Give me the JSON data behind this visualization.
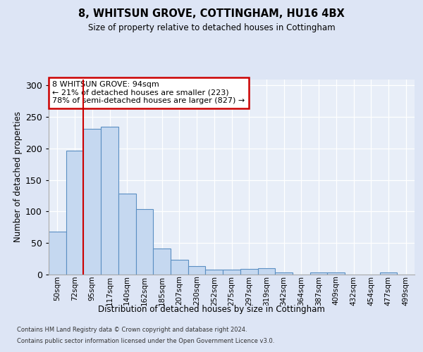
{
  "title": "8, WHITSUN GROVE, COTTINGHAM, HU16 4BX",
  "subtitle": "Size of property relative to detached houses in Cottingham",
  "xlabel": "Distribution of detached houses by size in Cottingham",
  "ylabel": "Number of detached properties",
  "bar_color": "#c5d8f0",
  "bar_edge_color": "#5a8fc2",
  "background_color": "#e8eef8",
  "fig_background_color": "#dde5f5",
  "grid_color": "#ffffff",
  "categories": [
    "50sqm",
    "72sqm",
    "95sqm",
    "117sqm",
    "140sqm",
    "162sqm",
    "185sqm",
    "207sqm",
    "230sqm",
    "252sqm",
    "275sqm",
    "297sqm",
    "319sqm",
    "342sqm",
    "364sqm",
    "387sqm",
    "409sqm",
    "432sqm",
    "454sqm",
    "477sqm",
    "499sqm"
  ],
  "values": [
    68,
    197,
    231,
    235,
    129,
    104,
    41,
    23,
    13,
    8,
    8,
    9,
    10,
    3,
    0,
    3,
    3,
    0,
    0,
    3,
    0
  ],
  "red_line_x": 1.5,
  "annotation_text": "8 WHITSUN GROVE: 94sqm\n← 21% of detached houses are smaller (223)\n78% of semi-detached houses are larger (827) →",
  "annotation_box_color": "#ffffff",
  "annotation_border_color": "#cc0000",
  "ylim": [
    0,
    310
  ],
  "yticks": [
    0,
    50,
    100,
    150,
    200,
    250,
    300
  ],
  "footer_line1": "Contains HM Land Registry data © Crown copyright and database right 2024.",
  "footer_line2": "Contains public sector information licensed under the Open Government Licence v3.0."
}
